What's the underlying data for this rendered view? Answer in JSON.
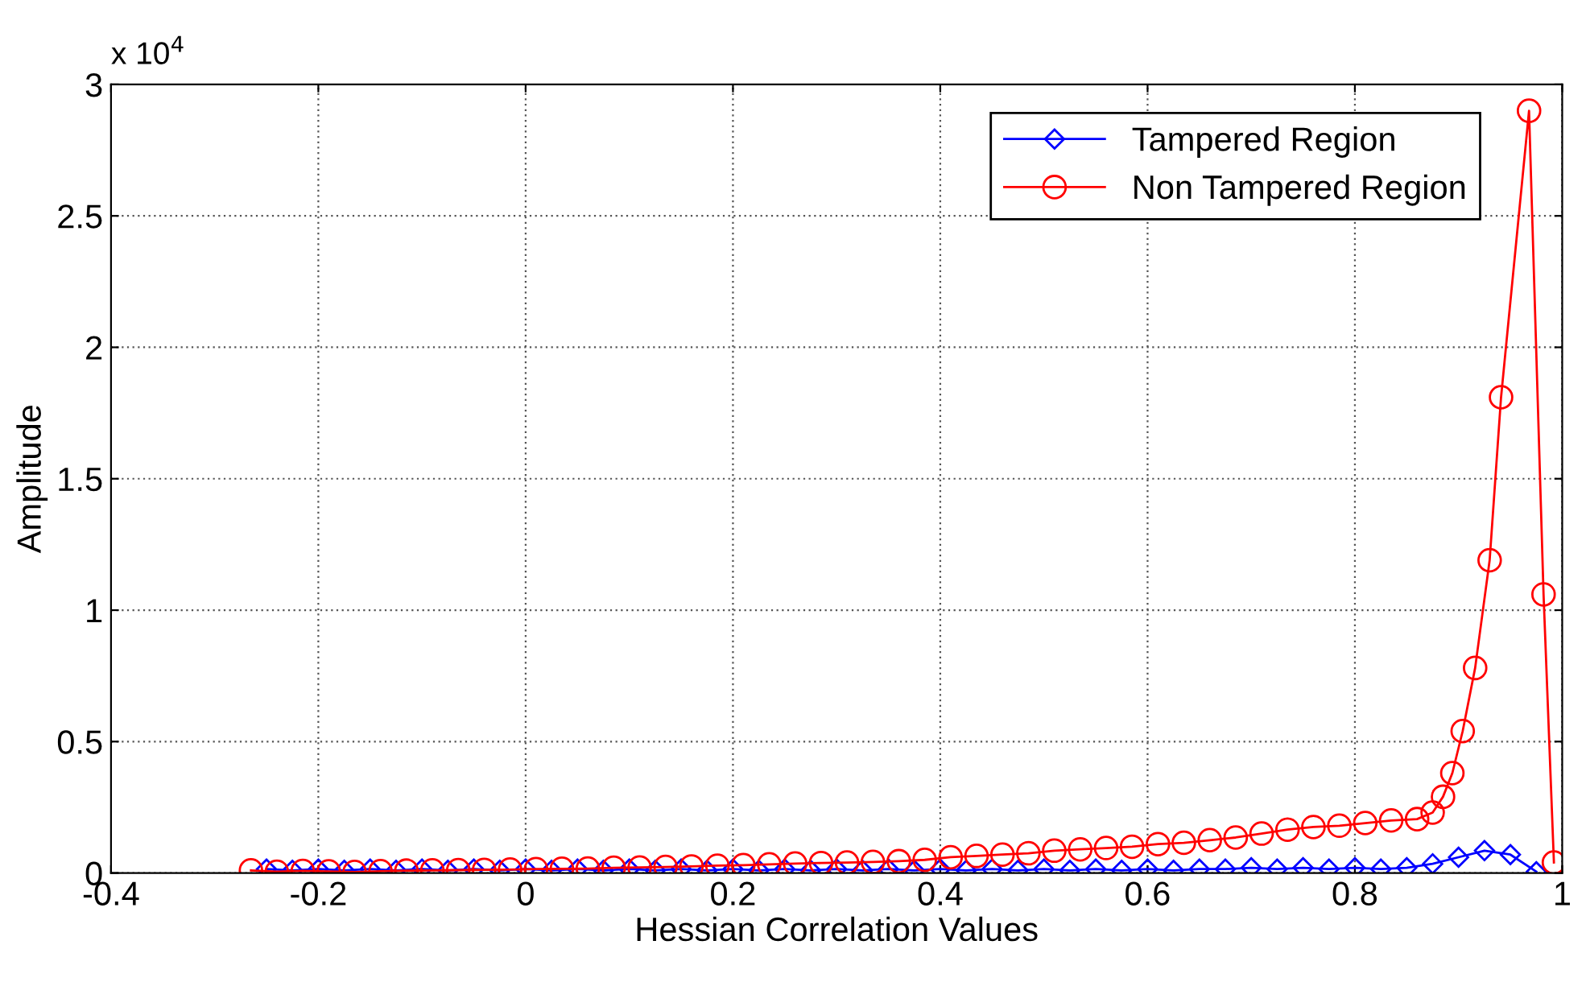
{
  "chart_data": {
    "type": "line",
    "xlabel": "Hessian Correlation Values",
    "ylabel": "Amplitude",
    "annotations": [
      "x 10$^{4}$"
    ],
    "xlim": [
      -0.4,
      1
    ],
    "xticks": [
      -0.4,
      -0.2,
      0,
      0.2,
      0.4,
      0.6,
      0.8,
      1
    ],
    "ylim": [
      0,
      3
    ],
    "yticks": [
      0,
      0.5,
      1,
      1.5,
      2,
      2.5,
      3
    ],
    "grid": true,
    "legend": "top right",
    "line_style": "solid",
    "series": [
      {
        "name": "Tampered Region",
        "color": "#0000ff",
        "marker": "diamond",
        "x": [
          -0.25,
          -0.225,
          -0.2,
          -0.175,
          -0.15,
          -0.125,
          -0.1,
          -0.075,
          -0.05,
          -0.025,
          0,
          0.025,
          0.05,
          0.075,
          0.1,
          0.125,
          0.15,
          0.175,
          0.2,
          0.225,
          0.25,
          0.275,
          0.3,
          0.325,
          0.35,
          0.375,
          0.4,
          0.425,
          0.45,
          0.475,
          0.5,
          0.525,
          0.55,
          0.575,
          0.6,
          0.625,
          0.65,
          0.675,
          0.7,
          0.725,
          0.75,
          0.775,
          0.8,
          0.825,
          0.85,
          0.875,
          0.9,
          0.925,
          0.95,
          0.975
        ],
        "values": [
          0.015,
          0.01,
          0.015,
          0.01,
          0.015,
          0.01,
          0.015,
          0.01,
          0.015,
          0.01,
          0.015,
          0.01,
          0.015,
          0.01,
          0.015,
          0.01,
          0.015,
          0.01,
          0.015,
          0.01,
          0.015,
          0.01,
          0.015,
          0.01,
          0.015,
          0.01,
          0.015,
          0.01,
          0.015,
          0.01,
          0.015,
          0.01,
          0.015,
          0.01,
          0.015,
          0.01,
          0.015,
          0.015,
          0.02,
          0.015,
          0.02,
          0.015,
          0.02,
          0.015,
          0.02,
          0.035,
          0.06,
          0.085,
          0.07,
          0.005
        ]
      },
      {
        "name": "Non Tampered Region",
        "color": "#ff0000",
        "marker": "circle",
        "x": [
          -0.265,
          -0.24,
          -0.215,
          -0.19,
          -0.165,
          -0.14,
          -0.115,
          -0.09,
          -0.065,
          -0.04,
          -0.015,
          0.01,
          0.035,
          0.06,
          0.085,
          0.11,
          0.135,
          0.16,
          0.185,
          0.21,
          0.235,
          0.26,
          0.285,
          0.31,
          0.335,
          0.36,
          0.385,
          0.41,
          0.435,
          0.46,
          0.485,
          0.51,
          0.535,
          0.56,
          0.585,
          0.61,
          0.635,
          0.66,
          0.685,
          0.71,
          0.735,
          0.76,
          0.785,
          0.81,
          0.835,
          0.86,
          0.875,
          0.885,
          0.894,
          0.904,
          0.916,
          0.93,
          0.941,
          0.968,
          0.982,
          0.992
        ],
        "values": [
          0.01,
          0.005,
          0.008,
          0.006,
          0.004,
          0.007,
          0.009,
          0.01,
          0.011,
          0.012,
          0.013,
          0.015,
          0.016,
          0.017,
          0.02,
          0.021,
          0.023,
          0.025,
          0.028,
          0.03,
          0.033,
          0.036,
          0.038,
          0.04,
          0.042,
          0.045,
          0.05,
          0.06,
          0.065,
          0.07,
          0.075,
          0.085,
          0.09,
          0.095,
          0.1,
          0.11,
          0.115,
          0.125,
          0.135,
          0.15,
          0.165,
          0.175,
          0.18,
          0.19,
          0.2,
          0.205,
          0.23,
          0.29,
          0.38,
          0.54,
          0.78,
          1.19,
          1.81,
          2.9,
          1.06,
          0.04
        ]
      }
    ]
  }
}
